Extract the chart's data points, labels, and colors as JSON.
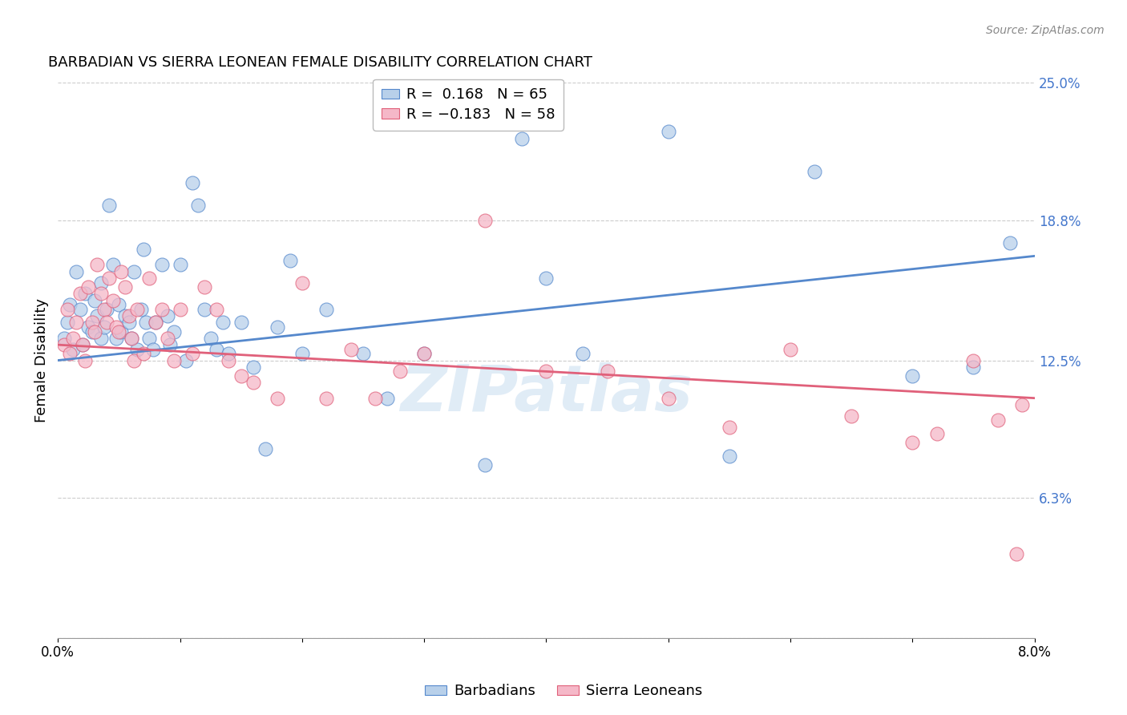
{
  "title": "BARBADIAN VS SIERRA LEONEAN FEMALE DISABILITY CORRELATION CHART",
  "source": "Source: ZipAtlas.com",
  "ylabel": "Female Disability",
  "xlim": [
    0.0,
    8.0
  ],
  "ylim": [
    0.0,
    25.0
  ],
  "yticks": [
    0.0,
    6.3,
    12.5,
    18.8,
    25.0
  ],
  "ytick_labels": [
    "",
    "6.3%",
    "12.5%",
    "18.8%",
    "25.0%"
  ],
  "xticks": [
    0.0,
    1.0,
    2.0,
    3.0,
    4.0,
    5.0,
    6.0,
    7.0,
    8.0
  ],
  "xtick_labels": [
    "0.0%",
    "",
    "",
    "",
    "",
    "",
    "",
    "",
    "8.0%"
  ],
  "grid_color": "#cccccc",
  "background_color": "#ffffff",
  "watermark": "ZIPatlas",
  "blue_color": "#b8d0ea",
  "pink_color": "#f5b8c8",
  "blue_line_color": "#5588cc",
  "pink_line_color": "#e0607a",
  "blue_label": "Barbadians",
  "pink_label": "Sierra Leoneans",
  "blue_regression": [
    12.5,
    17.2
  ],
  "pink_regression": [
    13.2,
    10.8
  ],
  "barbadian_x": [
    0.05,
    0.08,
    0.1,
    0.12,
    0.15,
    0.18,
    0.2,
    0.22,
    0.25,
    0.28,
    0.3,
    0.32,
    0.35,
    0.35,
    0.38,
    0.4,
    0.42,
    0.45,
    0.48,
    0.5,
    0.52,
    0.55,
    0.58,
    0.6,
    0.62,
    0.65,
    0.68,
    0.7,
    0.72,
    0.75,
    0.78,
    0.8,
    0.85,
    0.9,
    0.92,
    0.95,
    1.0,
    1.05,
    1.1,
    1.15,
    1.2,
    1.25,
    1.3,
    1.35,
    1.4,
    1.5,
    1.6,
    1.7,
    1.8,
    1.9,
    2.0,
    2.2,
    2.5,
    2.7,
    3.0,
    3.5,
    3.8,
    4.0,
    4.3,
    5.0,
    5.5,
    6.2,
    7.0,
    7.5,
    7.8
  ],
  "barbadian_y": [
    13.5,
    14.2,
    15.0,
    13.0,
    16.5,
    14.8,
    13.2,
    15.5,
    14.0,
    13.8,
    15.2,
    14.5,
    13.5,
    16.0,
    14.0,
    14.8,
    19.5,
    16.8,
    13.5,
    15.0,
    13.8,
    14.5,
    14.2,
    13.5,
    16.5,
    13.0,
    14.8,
    17.5,
    14.2,
    13.5,
    13.0,
    14.2,
    16.8,
    14.5,
    13.2,
    13.8,
    16.8,
    12.5,
    20.5,
    19.5,
    14.8,
    13.5,
    13.0,
    14.2,
    12.8,
    14.2,
    12.2,
    8.5,
    14.0,
    17.0,
    12.8,
    14.8,
    12.8,
    10.8,
    12.8,
    7.8,
    22.5,
    16.2,
    12.8,
    22.8,
    8.2,
    21.0,
    11.8,
    12.2,
    17.8
  ],
  "sierraleonean_x": [
    0.05,
    0.08,
    0.1,
    0.12,
    0.15,
    0.18,
    0.2,
    0.22,
    0.25,
    0.28,
    0.3,
    0.32,
    0.35,
    0.38,
    0.4,
    0.42,
    0.45,
    0.48,
    0.5,
    0.52,
    0.55,
    0.58,
    0.6,
    0.62,
    0.65,
    0.7,
    0.75,
    0.8,
    0.85,
    0.9,
    0.95,
    1.0,
    1.1,
    1.2,
    1.3,
    1.4,
    1.5,
    1.6,
    1.8,
    2.0,
    2.2,
    2.4,
    2.6,
    2.8,
    3.0,
    3.5,
    4.0,
    4.5,
    5.0,
    5.5,
    6.0,
    6.5,
    7.0,
    7.2,
    7.5,
    7.7,
    7.85,
    7.9
  ],
  "sierraleonean_y": [
    13.2,
    14.8,
    12.8,
    13.5,
    14.2,
    15.5,
    13.2,
    12.5,
    15.8,
    14.2,
    13.8,
    16.8,
    15.5,
    14.8,
    14.2,
    16.2,
    15.2,
    14.0,
    13.8,
    16.5,
    15.8,
    14.5,
    13.5,
    12.5,
    14.8,
    12.8,
    16.2,
    14.2,
    14.8,
    13.5,
    12.5,
    14.8,
    12.8,
    15.8,
    14.8,
    12.5,
    11.8,
    11.5,
    10.8,
    16.0,
    10.8,
    13.0,
    10.8,
    12.0,
    12.8,
    18.8,
    12.0,
    12.0,
    10.8,
    9.5,
    13.0,
    10.0,
    8.8,
    9.2,
    12.5,
    9.8,
    3.8,
    10.5
  ]
}
